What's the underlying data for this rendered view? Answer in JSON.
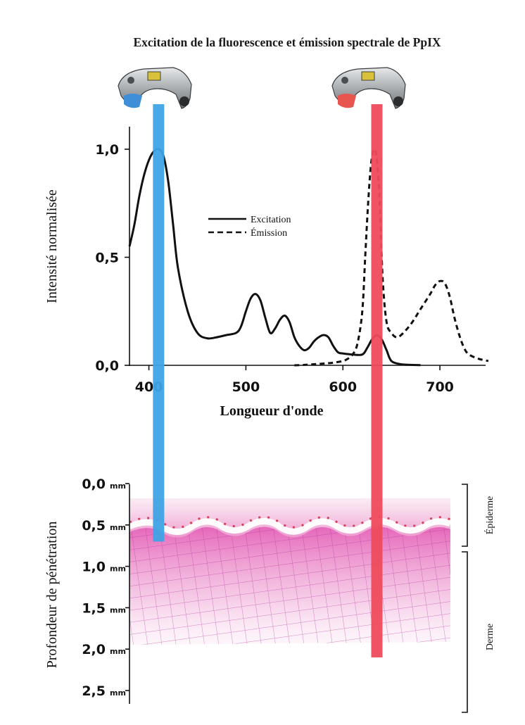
{
  "title": "Excitation de la fluorescence et émission spectrale de PpIX",
  "chart_data": [
    {
      "type": "line",
      "title": "Excitation de la fluorescence et émission spectrale de PpIX",
      "xlabel": "Longueur d'onde",
      "ylabel": "Intensité normalisée",
      "xlim": [
        380,
        750
      ],
      "ylim": [
        0,
        1.1
      ],
      "x_ticks": [
        "400",
        "500",
        "600",
        "700"
      ],
      "y_ticks": [
        "0,0",
        "0,5",
        "1,0"
      ],
      "legend_position": "middle",
      "series": [
        {
          "name": "Excitation",
          "style": "solid",
          "color": "#111111",
          "x": [
            380,
            385,
            390,
            395,
            400,
            405,
            410,
            415,
            420,
            425,
            430,
            440,
            450,
            460,
            470,
            480,
            490,
            495,
            500,
            505,
            510,
            515,
            520,
            525,
            530,
            535,
            540,
            545,
            550,
            555,
            560,
            565,
            570,
            575,
            580,
            585,
            590,
            595,
            600,
            610,
            620,
            625,
            630,
            635,
            640,
            645,
            650,
            660,
            670,
            680
          ],
          "y": [
            0.55,
            0.65,
            0.78,
            0.88,
            0.95,
            0.99,
            1.0,
            0.97,
            0.85,
            0.65,
            0.45,
            0.25,
            0.15,
            0.125,
            0.13,
            0.14,
            0.15,
            0.18,
            0.25,
            0.31,
            0.33,
            0.3,
            0.22,
            0.15,
            0.17,
            0.21,
            0.23,
            0.2,
            0.13,
            0.09,
            0.07,
            0.08,
            0.11,
            0.13,
            0.14,
            0.13,
            0.09,
            0.06,
            0.055,
            0.05,
            0.05,
            0.08,
            0.12,
            0.14,
            0.12,
            0.07,
            0.02,
            0.005,
            0.002,
            0.001
          ]
        },
        {
          "name": "Émission",
          "style": "dashed",
          "color": "#111111",
          "x": [
            550,
            560,
            570,
            580,
            590,
            600,
            605,
            610,
            615,
            620,
            623,
            626,
            629,
            632,
            635,
            638,
            641,
            645,
            650,
            655,
            660,
            670,
            680,
            690,
            695,
            700,
            705,
            710,
            715,
            720,
            725,
            730,
            740,
            750
          ],
          "y": [
            0.0,
            0.002,
            0.005,
            0.008,
            0.012,
            0.02,
            0.03,
            0.05,
            0.1,
            0.25,
            0.5,
            0.75,
            0.93,
            1.0,
            0.95,
            0.75,
            0.4,
            0.2,
            0.15,
            0.13,
            0.14,
            0.19,
            0.26,
            0.33,
            0.37,
            0.39,
            0.38,
            0.32,
            0.22,
            0.14,
            0.08,
            0.05,
            0.03,
            0.02
          ]
        }
      ],
      "highlight_bands": [
        {
          "center": 410,
          "color": "#3fa3e5"
        },
        {
          "center": 635,
          "color": "#ee4b5c"
        }
      ]
    },
    {
      "type": "diagram",
      "ylabel": "Profondeur de pénétration",
      "depth_ticks": [
        {
          "value": 0.0,
          "label": "0,0",
          "unit": "mm"
        },
        {
          "value": 0.5,
          "label": "0,5",
          "unit": "mm"
        },
        {
          "value": 1.0,
          "label": "1,0",
          "unit": "mm"
        },
        {
          "value": 1.5,
          "label": "1,5",
          "unit": "mm"
        },
        {
          "value": 2.0,
          "label": "2,0",
          "unit": "mm"
        },
        {
          "value": 2.5,
          "label": "2,5",
          "unit": "mm"
        }
      ],
      "layers": [
        {
          "name": "Épiderme",
          "depth_range": [
            0.0,
            0.75
          ]
        },
        {
          "name": "Derme",
          "depth_range": [
            0.8,
            2.75
          ]
        }
      ],
      "penetration": [
        {
          "light": "blue",
          "color": "#3fa3e5",
          "depth_mm": 0.7
        },
        {
          "light": "red",
          "color": "#ee4b5c",
          "depth_mm": 2.1
        }
      ]
    }
  ]
}
